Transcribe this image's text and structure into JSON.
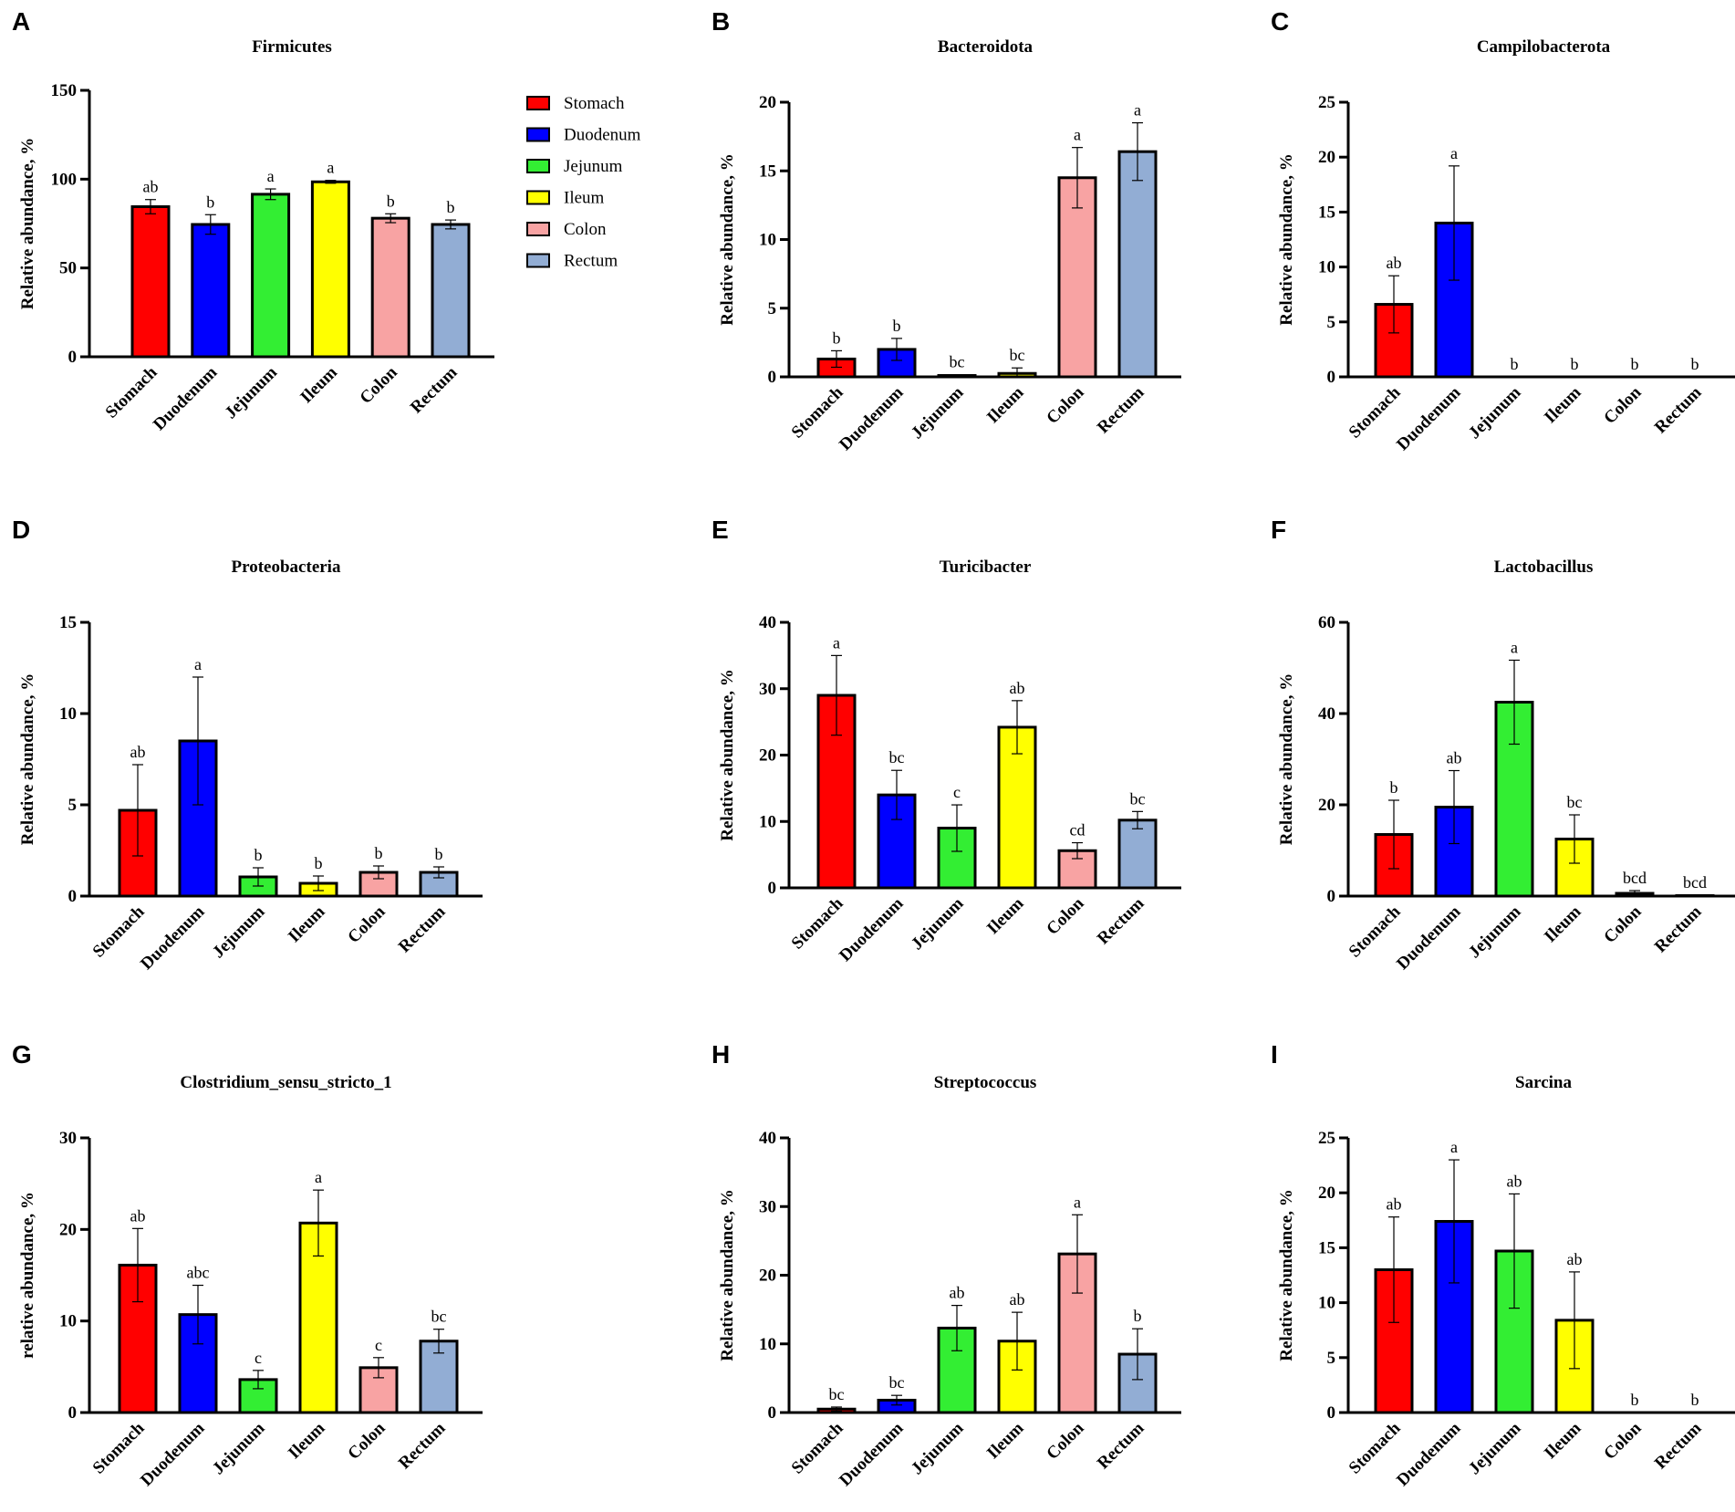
{
  "colors": {
    "Stomach": "#ff0000",
    "Duodenum": "#0000ff",
    "Jejunum": "#33ee33",
    "Ileum": "#ffff00",
    "Colon": "#f8a3a3",
    "Rectum": "#92add4"
  },
  "legend": [
    "Stomach",
    "Duodenum",
    "Jejunum",
    "Ileum",
    "Colon",
    "Rectum"
  ],
  "chart_data": [
    {
      "panel": "A",
      "type": "bar",
      "title": "Firmicutes",
      "ylabel": "Relative abundance, %",
      "categories": [
        "Stomach",
        "Duodenum",
        "Jejunum",
        "Ileum",
        "Colon",
        "Rectum"
      ],
      "values": [
        84.5,
        74.5,
        91.5,
        98.5,
        78,
        74.5
      ],
      "errors": [
        4,
        5.5,
        3,
        0.8,
        2.5,
        2.5
      ],
      "labels": [
        "ab",
        "b",
        "a",
        "a",
        "b",
        "b"
      ],
      "ylim": [
        0,
        150
      ],
      "ticks": [
        0,
        50,
        100,
        150
      ]
    },
    {
      "panel": "B",
      "type": "bar",
      "title": "Bacteroidota",
      "ylabel": "Relative abundance, %",
      "categories": [
        "Stomach",
        "Duodenum",
        "Jejunum",
        "Ileum",
        "Colon",
        "Rectum"
      ],
      "values": [
        1.3,
        2,
        0.1,
        0.25,
        14.5,
        16.4
      ],
      "errors": [
        0.6,
        0.8,
        0.05,
        0.4,
        2.2,
        2.1
      ],
      "labels": [
        "b",
        "b",
        "bc",
        "bc",
        "a",
        "a"
      ],
      "ylim": [
        0,
        20
      ],
      "ticks": [
        0,
        5,
        10,
        15,
        20
      ]
    },
    {
      "panel": "C",
      "type": "bar",
      "title": "Campilobacterota",
      "ylabel": "Relative abundance, %",
      "categories": [
        "Stomach",
        "Duodenum",
        "Jejunum",
        "Ileum",
        "Colon",
        "Rectum"
      ],
      "values": [
        6.6,
        14,
        0,
        0,
        0,
        0
      ],
      "errors": [
        2.6,
        5.2,
        0,
        0,
        0,
        0
      ],
      "labels": [
        "ab",
        "a",
        "b",
        "b",
        "b",
        "b"
      ],
      "ylim": [
        0,
        25
      ],
      "ticks": [
        0,
        5,
        10,
        15,
        20,
        25
      ]
    },
    {
      "panel": "D",
      "type": "bar",
      "title": "Proteobacteria",
      "ylabel": "Relative abundance, %",
      "categories": [
        "Stomach",
        "Duodenum",
        "Jejunum",
        "Ileum",
        "Colon",
        "Rectum"
      ],
      "values": [
        4.7,
        8.5,
        1.05,
        0.7,
        1.3,
        1.3
      ],
      "errors": [
        2.5,
        3.5,
        0.5,
        0.4,
        0.35,
        0.3
      ],
      "labels": [
        "ab",
        "a",
        "b",
        "b",
        "b",
        "b"
      ],
      "ylim": [
        0,
        15
      ],
      "ticks": [
        0,
        5,
        10,
        15
      ]
    },
    {
      "panel": "E",
      "type": "bar",
      "title": "Turicibacter",
      "ylabel": "Relative abundance, %",
      "categories": [
        "Stomach",
        "Duodenum",
        "Jejunum",
        "Ileum",
        "Colon",
        "Rectum"
      ],
      "values": [
        29,
        14,
        9,
        24.2,
        5.6,
        10.2
      ],
      "errors": [
        6,
        3.7,
        3.5,
        4,
        1.2,
        1.3
      ],
      "labels": [
        "a",
        "bc",
        "c",
        "ab",
        "cd",
        "bc"
      ],
      "ylim": [
        0,
        40
      ],
      "ticks": [
        0,
        10,
        20,
        30,
        40
      ]
    },
    {
      "panel": "F",
      "type": "bar",
      "title": "Lactobacillus",
      "ylabel": "Relative abundance, %",
      "categories": [
        "Stomach",
        "Duodenum",
        "Jejunum",
        "Ileum",
        "Colon",
        "Rectum"
      ],
      "values": [
        13.5,
        19.5,
        42.5,
        12.5,
        0.6,
        0.1
      ],
      "errors": [
        7.5,
        8,
        9.2,
        5.3,
        0.6,
        0.1
      ],
      "labels": [
        "b",
        "ab",
        "a",
        "bc",
        "bcd",
        "bcd"
      ],
      "ylim": [
        0,
        60
      ],
      "ticks": [
        0,
        20,
        40,
        60
      ]
    },
    {
      "panel": "G",
      "type": "bar",
      "title": "Clostridium_sensu_stricto_1",
      "ylabel": "relative abundance, %",
      "categories": [
        "Stomach",
        "Duodenum",
        "Jejunum",
        "Ileum",
        "Colon",
        "Rectum"
      ],
      "values": [
        16.1,
        10.7,
        3.6,
        20.7,
        4.9,
        7.8
      ],
      "errors": [
        4,
        3.2,
        1,
        3.6,
        1.1,
        1.3
      ],
      "labels": [
        "ab",
        "abc",
        "c",
        "a",
        "c",
        "bc"
      ],
      "ylim": [
        0,
        30
      ],
      "ticks": [
        0,
        10,
        20,
        30
      ]
    },
    {
      "panel": "H",
      "type": "bar",
      "title": "Streptococcus",
      "ylabel": "Relative abundance, %",
      "categories": [
        "Stomach",
        "Duodenum",
        "Jejunum",
        "Ileum",
        "Colon",
        "Rectum"
      ],
      "values": [
        0.5,
        1.8,
        12.3,
        10.4,
        23.1,
        8.5
      ],
      "errors": [
        0.3,
        0.7,
        3.3,
        4.2,
        5.7,
        3.7
      ],
      "labels": [
        "bc",
        "bc",
        "ab",
        "ab",
        "a",
        "b"
      ],
      "ylim": [
        0,
        40
      ],
      "ticks": [
        0,
        10,
        20,
        30,
        40
      ]
    },
    {
      "panel": "I",
      "type": "bar",
      "title": "Sarcina",
      "ylabel": "Relative abundance, %",
      "categories": [
        "Stomach",
        "Duodenum",
        "Jejunum",
        "Ileum",
        "Colon",
        "Rectum"
      ],
      "values": [
        13,
        17.4,
        14.7,
        8.4,
        0,
        0
      ],
      "errors": [
        4.8,
        5.6,
        5.2,
        4.4,
        0,
        0
      ],
      "labels": [
        "ab",
        "a",
        "ab",
        "ab",
        "b",
        "b"
      ],
      "ylim": [
        0,
        25
      ],
      "ticks": [
        0,
        5,
        10,
        15,
        20,
        25
      ]
    }
  ]
}
